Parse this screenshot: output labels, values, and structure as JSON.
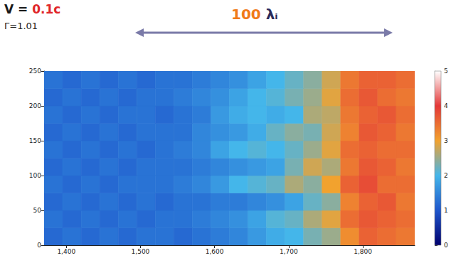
{
  "chart_data": {
    "type": "heatmap",
    "annotations": [
      "V = 0.1c",
      "Γ=1.01",
      "100 λᵢ"
    ],
    "xlim": [
      1370,
      1870
    ],
    "xticks": [
      1400,
      1500,
      1600,
      1700,
      1800
    ],
    "ylim": [
      0,
      250
    ],
    "yticks": [
      0,
      50,
      100,
      150,
      200,
      250
    ],
    "grid": false,
    "x_bins": [
      1370,
      1395,
      1420,
      1445,
      1470,
      1495,
      1520,
      1545,
      1570,
      1595,
      1620,
      1645,
      1670,
      1695,
      1720,
      1745,
      1770,
      1795,
      1820,
      1845,
      1870
    ],
    "y_bins": [
      0,
      25,
      50,
      75,
      100,
      125,
      150,
      175,
      200,
      225,
      250
    ],
    "values": [
      [
        1.2,
        1.3,
        1.2,
        1.3,
        1.2,
        1.3,
        1.3,
        1.2,
        1.3,
        1.4,
        1.5,
        1.7,
        1.9,
        2.0,
        2.3,
        2.5,
        3.2,
        3.6,
        3.5,
        3.4
      ],
      [
        1.3,
        1.2,
        1.3,
        1.2,
        1.3,
        1.2,
        1.3,
        1.3,
        1.4,
        1.5,
        1.6,
        1.8,
        2.1,
        2.2,
        2.6,
        2.9,
        3.5,
        3.7,
        3.6,
        3.5
      ],
      [
        1.2,
        1.3,
        1.2,
        1.3,
        1.2,
        1.3,
        1.2,
        1.3,
        1.3,
        1.4,
        1.4,
        1.5,
        1.6,
        1.8,
        2.2,
        2.4,
        3.3,
        3.6,
        3.7,
        3.4
      ],
      [
        1.3,
        1.2,
        1.3,
        1.2,
        1.3,
        1.3,
        1.3,
        1.4,
        1.5,
        1.7,
        2.0,
        2.1,
        2.2,
        2.6,
        2.4,
        3.0,
        3.6,
        3.8,
        3.5,
        3.5
      ],
      [
        1.2,
        1.3,
        1.2,
        1.3,
        1.2,
        1.3,
        1.3,
        1.3,
        1.4,
        1.5,
        1.6,
        1.7,
        1.8,
        2.3,
        2.8,
        2.6,
        3.4,
        3.7,
        3.6,
        3.4
      ],
      [
        1.3,
        1.2,
        1.3,
        1.2,
        1.3,
        1.2,
        1.3,
        1.4,
        1.5,
        1.8,
        2.0,
        2.1,
        2.0,
        2.2,
        2.5,
        2.9,
        3.5,
        3.6,
        3.5,
        3.5
      ],
      [
        1.2,
        1.3,
        1.2,
        1.3,
        1.2,
        1.3,
        1.3,
        1.3,
        1.5,
        1.6,
        1.7,
        1.9,
        2.2,
        2.4,
        2.3,
        2.8,
        3.3,
        3.7,
        3.6,
        3.4
      ],
      [
        1.3,
        1.2,
        1.3,
        1.2,
        1.3,
        1.3,
        1.2,
        1.3,
        1.4,
        1.7,
        1.9,
        2.0,
        1.9,
        2.0,
        2.6,
        2.7,
        3.4,
        3.6,
        3.7,
        3.5
      ],
      [
        1.2,
        1.3,
        1.2,
        1.3,
        1.2,
        1.3,
        1.3,
        1.4,
        1.5,
        1.6,
        1.8,
        2.0,
        2.1,
        2.3,
        2.5,
        2.9,
        3.5,
        3.7,
        3.5,
        3.4
      ],
      [
        1.3,
        1.2,
        1.3,
        1.2,
        1.3,
        1.2,
        1.3,
        1.3,
        1.4,
        1.5,
        1.6,
        1.8,
        2.0,
        2.2,
        2.4,
        2.8,
        3.4,
        3.6,
        3.6,
        3.5
      ]
    ],
    "colorbar": {
      "range": [
        0,
        5
      ],
      "ticks": [
        0,
        1,
        2,
        3,
        4,
        5
      ]
    }
  }
}
